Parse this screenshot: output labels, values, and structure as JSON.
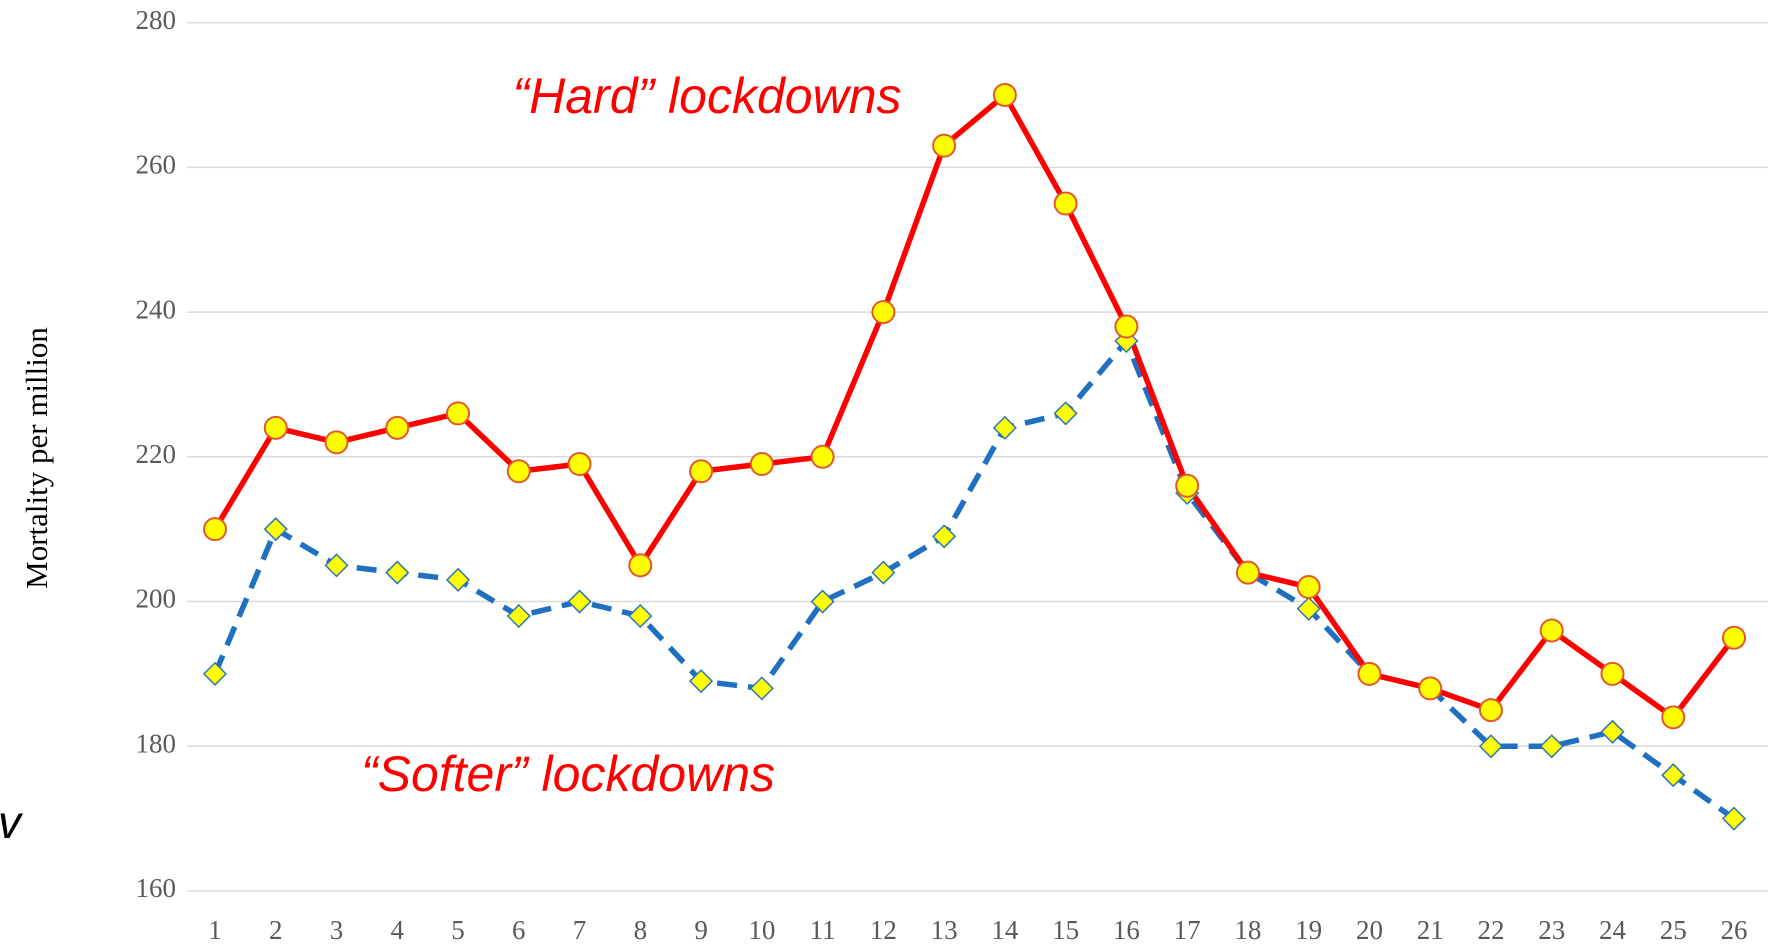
{
  "chart_data": {
    "type": "line",
    "y_label": "Mortality per million",
    "annotations": [
      "“Hard” lockdowns",
      "“Softer” lockdowns"
    ],
    "edge_text": "v",
    "categories": [
      "1",
      "2",
      "3",
      "4",
      "5",
      "6",
      "7",
      "8",
      "9",
      "10",
      "11",
      "12",
      "13",
      "14",
      "15",
      "16",
      "17",
      "18",
      "19",
      "20",
      "21",
      "22",
      "23",
      "24",
      "25",
      "26"
    ],
    "series": [
      {
        "color": "#ff0000",
        "marker": "circle",
        "dashed": false,
        "values": [
          210,
          224,
          222,
          224,
          226,
          218,
          219,
          205,
          218,
          219,
          220,
          240,
          263,
          270,
          255,
          238,
          216,
          204,
          202,
          190,
          188,
          185,
          196,
          190,
          184,
          195
        ]
      },
      {
        "color": "#1f70c1",
        "marker": "diamond",
        "dashed": true,
        "values": [
          190,
          210,
          205,
          204,
          203,
          198,
          200,
          198,
          189,
          188,
          200,
          204,
          209,
          224,
          226,
          236,
          215,
          204,
          199,
          190,
          188,
          180,
          180,
          182,
          176,
          170
        ]
      }
    ],
    "ylim": [
      160,
      280
    ],
    "yticks": [
      160,
      180,
      200,
      220,
      240,
      260,
      280
    ],
    "grid": true
  }
}
